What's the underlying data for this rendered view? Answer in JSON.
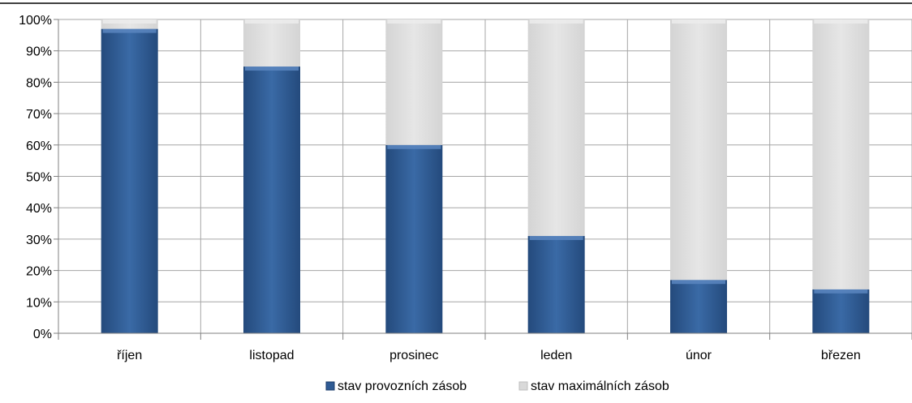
{
  "chart_data": {
    "type": "bar",
    "stacked": true,
    "categories": [
      "říjen",
      "listopad",
      "prosinec",
      "leden",
      "únor",
      "březen"
    ],
    "series": [
      {
        "name": "stav provozních zásob",
        "values": [
          97,
          85,
          60,
          31,
          17,
          14
        ],
        "color": "#2f5b94"
      },
      {
        "name": "stav maximálních zásob",
        "values": [
          3,
          15,
          40,
          69,
          83,
          86
        ],
        "color": "#d9d9d9"
      }
    ],
    "yticks": [
      "0%",
      "10%",
      "20%",
      "30%",
      "40%",
      "50%",
      "60%",
      "70%",
      "80%",
      "90%",
      "100%"
    ],
    "ylim": [
      0,
      100
    ],
    "grid": true,
    "legend_position": "bottom"
  }
}
